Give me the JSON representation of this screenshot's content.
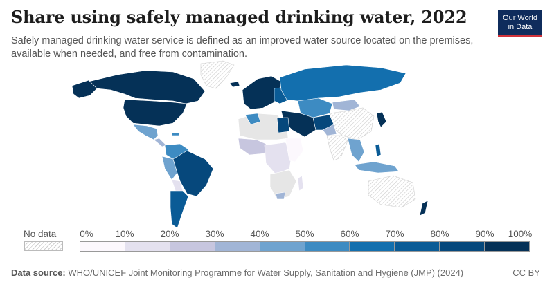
{
  "header": {
    "title": "Share using safely managed drinking water, 2022",
    "subtitle": "Safely managed drinking water service is defined as an improved water source located on the premises, available when needed, and free from contamination."
  },
  "logo": {
    "line1": "Our World",
    "line2": "in Data"
  },
  "legend": {
    "no_data_label": "No data",
    "ticks": [
      "0%",
      "10%",
      "20%",
      "30%",
      "40%",
      "50%",
      "60%",
      "70%",
      "80%",
      "90%",
      "100%"
    ],
    "bin_colors": [
      "#fcf8fd",
      "#e4e1ef",
      "#c7c6df",
      "#a1b5d6",
      "#6fa3cf",
      "#3d8bc2",
      "#136fae",
      "#0a5b96",
      "#06487c",
      "#053157"
    ]
  },
  "footer": {
    "source_label": "Data source:",
    "source_text": "WHO/UNICEF Joint Monitoring Programme for Water Supply, Sanitation and Hygiene (JMP) (2024)",
    "license": "CC BY"
  },
  "colors": {
    "land_no_data": "#e6e6e6",
    "border": "#ffffff",
    "logo_bg": "#0f2c5c",
    "logo_accent": "#d0323a"
  }
}
